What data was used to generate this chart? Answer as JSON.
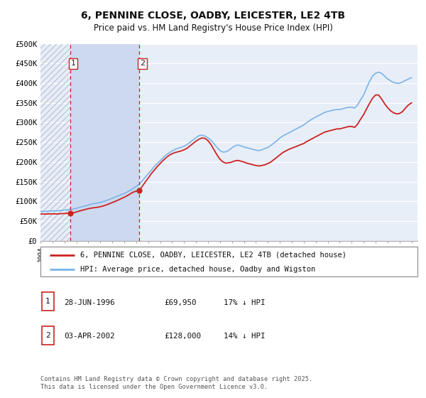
{
  "title": "6, PENNINE CLOSE, OADBY, LEICESTER, LE2 4TB",
  "subtitle": "Price paid vs. HM Land Registry's House Price Index (HPI)",
  "bg_color": "#ffffff",
  "plot_bg_color": "#e8eef8",
  "grid_color": "#ffffff",
  "hpi_color": "#7ab4e8",
  "price_color": "#cc2222",
  "vline_color": "#cc2222",
  "shade_color": "#cdd9ef",
  "hatch_color": "#c0c8d8",
  "purchase1_date": 1996.49,
  "purchase1_price": 69950,
  "purchase2_date": 2002.25,
  "purchase2_price": 128000,
  "ylim_max": 500000,
  "ylim_min": 0,
  "xlim_min": 1994.0,
  "xlim_max": 2025.5,
  "legend_line1": "6, PENNINE CLOSE, OADBY, LEICESTER, LE2 4TB (detached house)",
  "legend_line2": "HPI: Average price, detached house, Oadby and Wigston",
  "table_row1": [
    "1",
    "28-JUN-1996",
    "£69,950",
    "17% ↓ HPI"
  ],
  "table_row2": [
    "2",
    "03-APR-2002",
    "£128,000",
    "14% ↓ HPI"
  ],
  "footnote": "Contains HM Land Registry data © Crown copyright and database right 2025.\nThis data is licensed under the Open Government Licence v3.0.",
  "hpi_data": [
    [
      1994.0,
      75000
    ],
    [
      1994.25,
      74500
    ],
    [
      1994.5,
      74800
    ],
    [
      1994.75,
      75200
    ],
    [
      1995.0,
      76000
    ],
    [
      1995.25,
      75800
    ],
    [
      1995.5,
      76200
    ],
    [
      1995.75,
      77000
    ],
    [
      1996.0,
      78000
    ],
    [
      1996.25,
      78800
    ],
    [
      1996.5,
      79500
    ],
    [
      1996.75,
      80500
    ],
    [
      1997.0,
      82500
    ],
    [
      1997.25,
      84500
    ],
    [
      1997.5,
      86500
    ],
    [
      1997.75,
      88500
    ],
    [
      1998.0,
      91000
    ],
    [
      1998.25,
      93000
    ],
    [
      1998.5,
      94500
    ],
    [
      1998.75,
      95500
    ],
    [
      1999.0,
      97500
    ],
    [
      1999.25,
      99500
    ],
    [
      1999.5,
      102000
    ],
    [
      1999.75,
      105000
    ],
    [
      2000.0,
      108000
    ],
    [
      2000.25,
      111000
    ],
    [
      2000.5,
      114000
    ],
    [
      2000.75,
      117000
    ],
    [
      2001.0,
      120000
    ],
    [
      2001.25,
      124000
    ],
    [
      2001.5,
      128000
    ],
    [
      2001.75,
      133000
    ],
    [
      2002.0,
      138000
    ],
    [
      2002.25,
      144000
    ],
    [
      2002.5,
      152000
    ],
    [
      2002.75,
      161000
    ],
    [
      2003.0,
      170000
    ],
    [
      2003.25,
      179000
    ],
    [
      2003.5,
      188000
    ],
    [
      2003.75,
      196000
    ],
    [
      2004.0,
      203000
    ],
    [
      2004.25,
      211000
    ],
    [
      2004.5,
      218000
    ],
    [
      2004.75,
      223000
    ],
    [
      2005.0,
      228000
    ],
    [
      2005.25,
      232000
    ],
    [
      2005.5,
      235000
    ],
    [
      2005.75,
      237000
    ],
    [
      2006.0,
      240000
    ],
    [
      2006.25,
      244000
    ],
    [
      2006.5,
      250000
    ],
    [
      2006.75,
      256000
    ],
    [
      2007.0,
      262000
    ],
    [
      2007.25,
      267000
    ],
    [
      2007.5,
      268000
    ],
    [
      2007.75,
      266000
    ],
    [
      2008.0,
      261000
    ],
    [
      2008.25,
      255000
    ],
    [
      2008.5,
      246000
    ],
    [
      2008.75,
      237000
    ],
    [
      2009.0,
      229000
    ],
    [
      2009.25,
      225000
    ],
    [
      2009.5,
      226000
    ],
    [
      2009.75,
      230000
    ],
    [
      2010.0,
      236000
    ],
    [
      2010.25,
      241000
    ],
    [
      2010.5,
      243000
    ],
    [
      2010.75,
      241000
    ],
    [
      2011.0,
      238000
    ],
    [
      2011.25,
      236000
    ],
    [
      2011.5,
      234000
    ],
    [
      2011.75,
      232000
    ],
    [
      2012.0,
      230000
    ],
    [
      2012.25,
      229000
    ],
    [
      2012.5,
      231000
    ],
    [
      2012.75,
      234000
    ],
    [
      2013.0,
      237000
    ],
    [
      2013.25,
      242000
    ],
    [
      2013.5,
      248000
    ],
    [
      2013.75,
      254000
    ],
    [
      2014.0,
      261000
    ],
    [
      2014.25,
      266000
    ],
    [
      2014.5,
      270000
    ],
    [
      2014.75,
      274000
    ],
    [
      2015.0,
      278000
    ],
    [
      2015.25,
      282000
    ],
    [
      2015.5,
      286000
    ],
    [
      2015.75,
      290000
    ],
    [
      2016.0,
      294000
    ],
    [
      2016.25,
      300000
    ],
    [
      2016.5,
      305000
    ],
    [
      2016.75,
      310000
    ],
    [
      2017.0,
      314000
    ],
    [
      2017.25,
      318000
    ],
    [
      2017.5,
      322000
    ],
    [
      2017.75,
      326000
    ],
    [
      2018.0,
      328000
    ],
    [
      2018.25,
      330000
    ],
    [
      2018.5,
      332000
    ],
    [
      2018.75,
      333000
    ],
    [
      2019.0,
      333000
    ],
    [
      2019.25,
      335000
    ],
    [
      2019.5,
      337000
    ],
    [
      2019.75,
      339000
    ],
    [
      2020.0,
      339000
    ],
    [
      2020.25,
      337000
    ],
    [
      2020.5,
      345000
    ],
    [
      2020.75,
      358000
    ],
    [
      2021.0,
      370000
    ],
    [
      2021.25,
      388000
    ],
    [
      2021.5,
      405000
    ],
    [
      2021.75,
      418000
    ],
    [
      2022.0,
      425000
    ],
    [
      2022.25,
      428000
    ],
    [
      2022.5,
      425000
    ],
    [
      2022.75,
      418000
    ],
    [
      2023.0,
      411000
    ],
    [
      2023.25,
      406000
    ],
    [
      2023.5,
      402000
    ],
    [
      2023.75,
      400000
    ],
    [
      2024.0,
      400000
    ],
    [
      2024.25,
      403000
    ],
    [
      2024.5,
      407000
    ],
    [
      2024.75,
      411000
    ],
    [
      2025.0,
      414000
    ]
  ],
  "price_data": [
    [
      1994.0,
      68000
    ],
    [
      1994.25,
      67800
    ],
    [
      1994.5,
      68000
    ],
    [
      1994.75,
      68300
    ],
    [
      1995.0,
      68500
    ],
    [
      1995.25,
      68200
    ],
    [
      1995.5,
      68400
    ],
    [
      1995.75,
      68900
    ],
    [
      1996.0,
      69300
    ],
    [
      1996.25,
      69600
    ],
    [
      1996.49,
      69950
    ],
    [
      1996.75,
      71000
    ],
    [
      1997.0,
      73200
    ],
    [
      1997.25,
      75500
    ],
    [
      1997.5,
      77500
    ],
    [
      1997.75,
      79500
    ],
    [
      1998.0,
      81500
    ],
    [
      1998.25,
      83000
    ],
    [
      1998.5,
      84000
    ],
    [
      1998.75,
      85000
    ],
    [
      1999.0,
      86500
    ],
    [
      1999.25,
      88500
    ],
    [
      1999.5,
      91000
    ],
    [
      1999.75,
      94000
    ],
    [
      2000.0,
      97000
    ],
    [
      2000.25,
      100000
    ],
    [
      2000.5,
      103500
    ],
    [
      2000.75,
      107000
    ],
    [
      2001.0,
      110500
    ],
    [
      2001.25,
      114500
    ],
    [
      2001.5,
      119000
    ],
    [
      2001.75,
      123500
    ],
    [
      2002.0,
      126000
    ],
    [
      2002.25,
      128000
    ],
    [
      2002.5,
      138000
    ],
    [
      2002.75,
      149000
    ],
    [
      2003.0,
      159000
    ],
    [
      2003.25,
      170000
    ],
    [
      2003.5,
      179000
    ],
    [
      2003.75,
      188000
    ],
    [
      2004.0,
      196000
    ],
    [
      2004.25,
      204000
    ],
    [
      2004.5,
      211000
    ],
    [
      2004.75,
      217000
    ],
    [
      2005.0,
      221000
    ],
    [
      2005.25,
      224000
    ],
    [
      2005.5,
      226000
    ],
    [
      2005.75,
      228000
    ],
    [
      2006.0,
      231000
    ],
    [
      2006.25,
      235000
    ],
    [
      2006.5,
      241000
    ],
    [
      2006.75,
      247000
    ],
    [
      2007.0,
      253000
    ],
    [
      2007.25,
      258000
    ],
    [
      2007.5,
      261000
    ],
    [
      2007.75,
      260000
    ],
    [
      2008.0,
      254000
    ],
    [
      2008.25,
      244000
    ],
    [
      2008.5,
      231000
    ],
    [
      2008.75,
      218000
    ],
    [
      2009.0,
      207000
    ],
    [
      2009.25,
      200000
    ],
    [
      2009.5,
      197000
    ],
    [
      2009.75,
      198000
    ],
    [
      2010.0,
      200000
    ],
    [
      2010.25,
      203000
    ],
    [
      2010.5,
      204000
    ],
    [
      2010.75,
      202000
    ],
    [
      2011.0,
      200000
    ],
    [
      2011.25,
      197000
    ],
    [
      2011.5,
      195000
    ],
    [
      2011.75,
      193000
    ],
    [
      2012.0,
      191000
    ],
    [
      2012.25,
      190000
    ],
    [
      2012.5,
      191000
    ],
    [
      2012.75,
      193000
    ],
    [
      2013.0,
      196000
    ],
    [
      2013.25,
      200000
    ],
    [
      2013.5,
      206000
    ],
    [
      2013.75,
      212000
    ],
    [
      2014.0,
      218000
    ],
    [
      2014.25,
      224000
    ],
    [
      2014.5,
      228000
    ],
    [
      2014.75,
      232000
    ],
    [
      2015.0,
      235000
    ],
    [
      2015.25,
      238000
    ],
    [
      2015.5,
      241000
    ],
    [
      2015.75,
      244000
    ],
    [
      2016.0,
      247000
    ],
    [
      2016.25,
      252000
    ],
    [
      2016.5,
      256000
    ],
    [
      2016.75,
      260000
    ],
    [
      2017.0,
      264000
    ],
    [
      2017.25,
      268000
    ],
    [
      2017.5,
      272000
    ],
    [
      2017.75,
      276000
    ],
    [
      2018.0,
      278000
    ],
    [
      2018.25,
      280000
    ],
    [
      2018.5,
      282000
    ],
    [
      2018.75,
      284000
    ],
    [
      2019.0,
      284000
    ],
    [
      2019.25,
      286000
    ],
    [
      2019.5,
      288000
    ],
    [
      2019.75,
      290000
    ],
    [
      2020.0,
      290000
    ],
    [
      2020.25,
      288000
    ],
    [
      2020.5,
      296000
    ],
    [
      2020.75,
      309000
    ],
    [
      2021.0,
      320000
    ],
    [
      2021.25,
      335000
    ],
    [
      2021.5,
      349000
    ],
    [
      2021.75,
      362000
    ],
    [
      2022.0,
      370000
    ],
    [
      2022.25,
      370000
    ],
    [
      2022.5,
      360000
    ],
    [
      2022.75,
      348000
    ],
    [
      2023.0,
      338000
    ],
    [
      2023.25,
      330000
    ],
    [
      2023.5,
      325000
    ],
    [
      2023.75,
      322000
    ],
    [
      2024.0,
      323000
    ],
    [
      2024.25,
      328000
    ],
    [
      2024.5,
      337000
    ],
    [
      2024.75,
      345000
    ],
    [
      2025.0,
      350000
    ]
  ]
}
